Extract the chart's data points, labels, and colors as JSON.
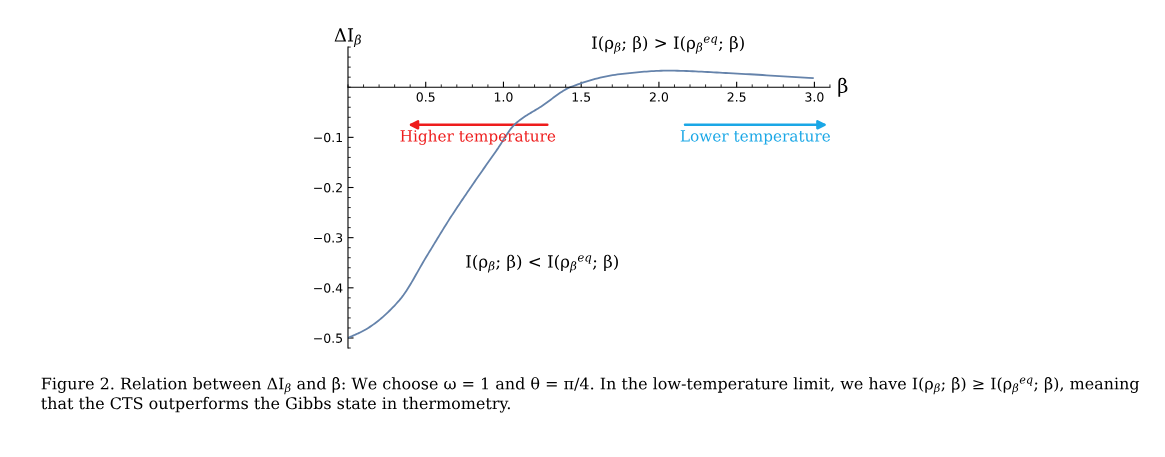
{
  "chart_data": {
    "type": "line",
    "xlabel": "β",
    "ylabel": "ΔI$_{β}$",
    "x": [
      0,
      0.12,
      0.33,
      0.51,
      0.655,
      0.8,
      0.96,
      1.07,
      1.25,
      1.43,
      1.75,
      2.06,
      2.45,
      2.99
    ],
    "series": [
      {
        "color": "#6583ab",
        "values": [
          -0.5,
          -0.482,
          -0.425,
          -0.335,
          -0.262,
          -0.195,
          -0.124,
          -0.075,
          -0.037,
          0,
          0.026,
          0.033,
          0.028,
          0.018
        ]
      }
    ],
    "xlim": [
      0,
      3.1
    ],
    "ylim": [
      -0.52,
      0.08
    ],
    "xticks": [
      0.5,
      {
        "value": 1,
        "label": "1.0"
      },
      1.5,
      {
        "value": 2,
        "label": "2.0"
      },
      2.5,
      {
        "value": 3,
        "label": "3.0"
      }
    ],
    "yticks": [
      {
        "value": -0.5,
        "label": "−0.5"
      },
      {
        "value": -0.4,
        "label": "−0.4"
      },
      {
        "value": -0.3,
        "label": "−0.3"
      },
      {
        "value": -0.2,
        "label": "−0.2"
      },
      {
        "value": -0.1,
        "label": "−0.1"
      }
    ],
    "grid": false,
    "legend": false,
    "marker": "none",
    "line_style": "solid",
    "annotations": [
      {
        "text": "I(ρ$_{β}$; β) > I(ρ$_{β}$$^{eq}$; β)",
        "x": 2.06,
        "y": 0.033
      },
      "I(ρ$_{β}$; β) < I(ρ$_{β}$$^{eq}$; β)",
      "Higher temperature",
      "Lower temperature",
      "Figure 2. Relation between ΔI$_{β}$ and β: We choose ω = 1 and θ = π/4. In the low-temperature limit, we have I(ρ$_{β}$; β) ≥ I(ρ$_{β}$$^{eq}$; β), meaning that the CTS outperforms the Gibbs state in thermometry."
    ]
  }
}
